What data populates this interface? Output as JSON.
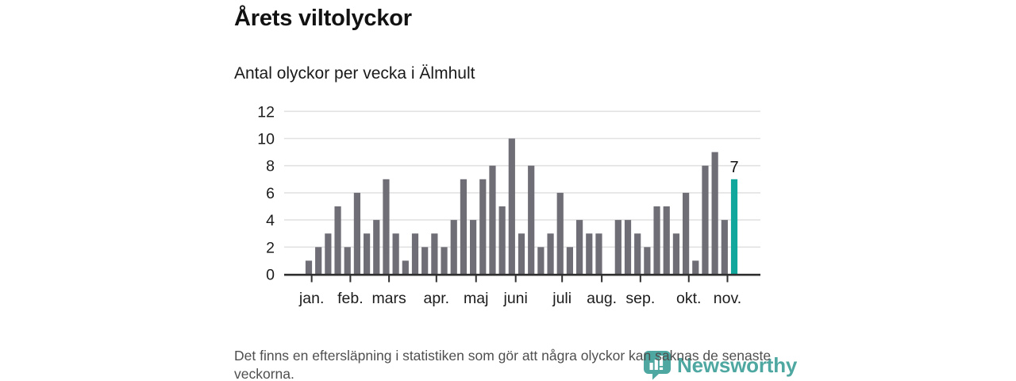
{
  "header": {
    "title": "Årets viltolyckor",
    "subtitle": "Antal olyckor per vecka i Älmhult"
  },
  "chart_data": {
    "type": "bar",
    "title": "Antal olyckor per vecka i Älmhult",
    "xlabel": "",
    "ylabel": "",
    "ylim": [
      0,
      12
    ],
    "y_ticks": [
      0,
      2,
      4,
      6,
      8,
      10,
      12
    ],
    "grid": true,
    "weeks": 45,
    "values": [
      1,
      2,
      3,
      5,
      2,
      6,
      3,
      4,
      7,
      3,
      1,
      3,
      2,
      3,
      2,
      4,
      7,
      4,
      7,
      8,
      5,
      10,
      3,
      8,
      2,
      3,
      6,
      2,
      4,
      3,
      3,
      0,
      4,
      4,
      3,
      2,
      5,
      5,
      3,
      6,
      1,
      8,
      9,
      4,
      7
    ],
    "highlight_index": 44,
    "highlight_label": "7",
    "months": [
      {
        "label": "jan.",
        "week": 1.3
      },
      {
        "label": "feb.",
        "week": 5.3
      },
      {
        "label": "mars",
        "week": 9.3
      },
      {
        "label": "apr.",
        "week": 14.2
      },
      {
        "label": "maj",
        "week": 18.3
      },
      {
        "label": "juni",
        "week": 22.4
      },
      {
        "label": "juli",
        "week": 27.2
      },
      {
        "label": "aug.",
        "week": 31.3
      },
      {
        "label": "sep.",
        "week": 35.3
      },
      {
        "label": "okt.",
        "week": 40.3
      },
      {
        "label": "nov.",
        "week": 44.3
      }
    ],
    "colors": {
      "bar": "#6f6e76",
      "highlight": "#12a79d",
      "grid": "#e2e2e2",
      "axis": "#2f2f2f",
      "tick_text": "#1c1c1c",
      "value_label": "#111111"
    }
  },
  "footer": {
    "note": "Det finns en eftersläpning i statistiken som gör att några olyckor kan saknas de senaste veckorna.",
    "logo_text": "Newsworthy",
    "logo_color": "#3fa099"
  }
}
